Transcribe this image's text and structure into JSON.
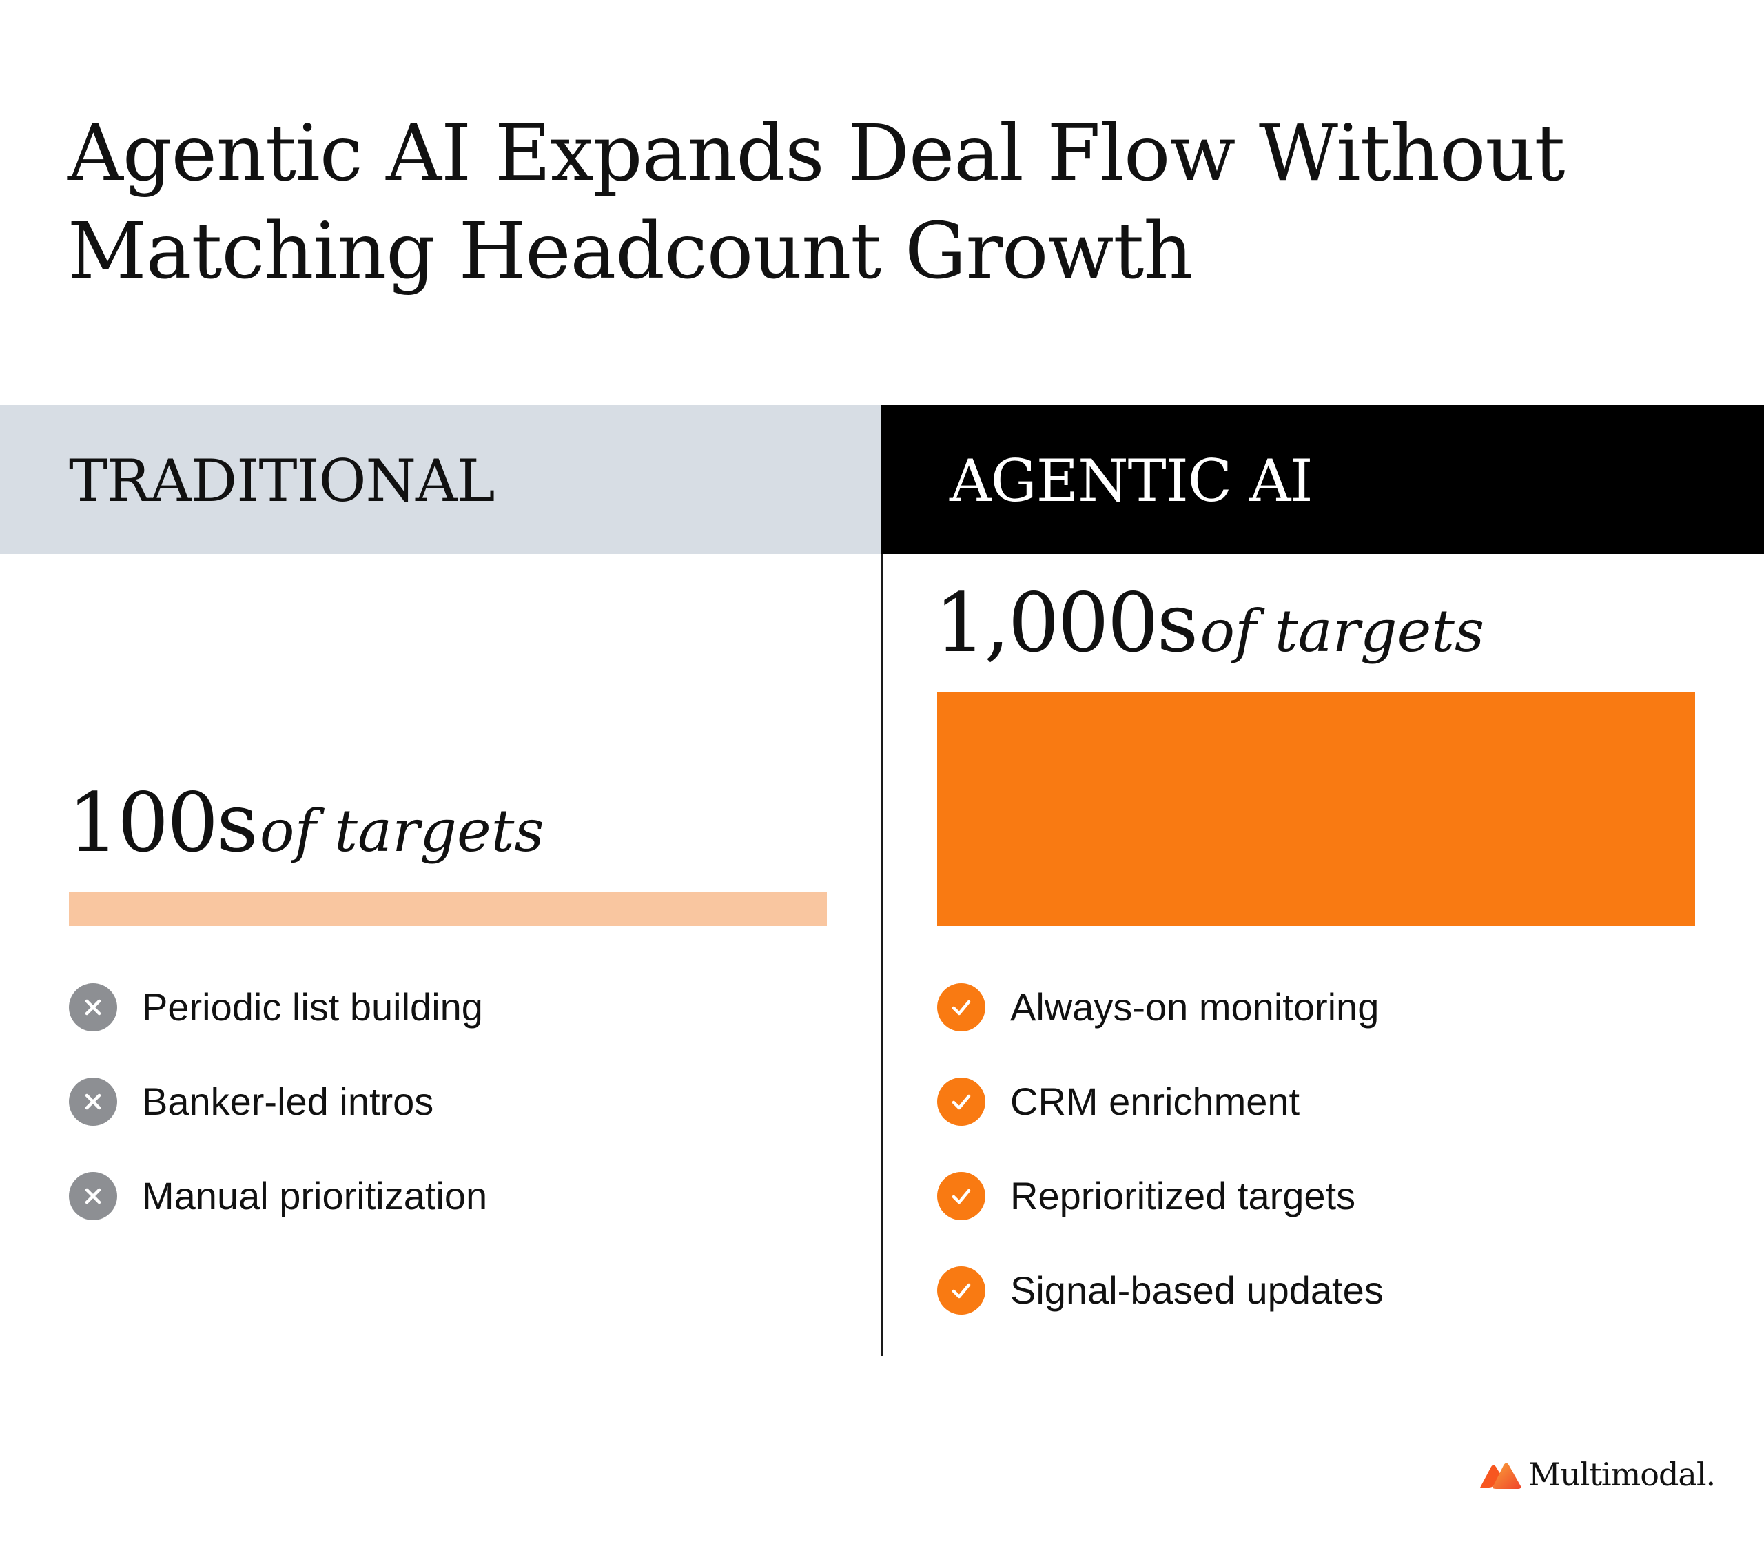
{
  "title": "Agentic AI Expands Deal Flow Without Matching Headcount Growth",
  "columns": {
    "traditional": {
      "header": "TRADITIONAL",
      "metric_number": "100s",
      "metric_unit": "of targets",
      "items": [
        "Periodic list building",
        "Banker-led intros",
        "Manual prioritization"
      ]
    },
    "agentic": {
      "header": "AGENTIC AI",
      "metric_number": "1,000s",
      "metric_unit": "of targets",
      "items": [
        "Always-on monitoring",
        "CRM enrichment",
        "Reprioritized targets",
        "Signal-based updates"
      ]
    }
  },
  "brand": {
    "name": "Multimodal."
  },
  "icons": {
    "negative": "x-circle-icon",
    "positive": "check-circle-icon"
  },
  "colors": {
    "accent": "#f97a12",
    "accent_light": "#f9c6a0",
    "header_light": "#d7dde4",
    "header_dark": "#000000",
    "icon_gray": "#8d8f93"
  }
}
